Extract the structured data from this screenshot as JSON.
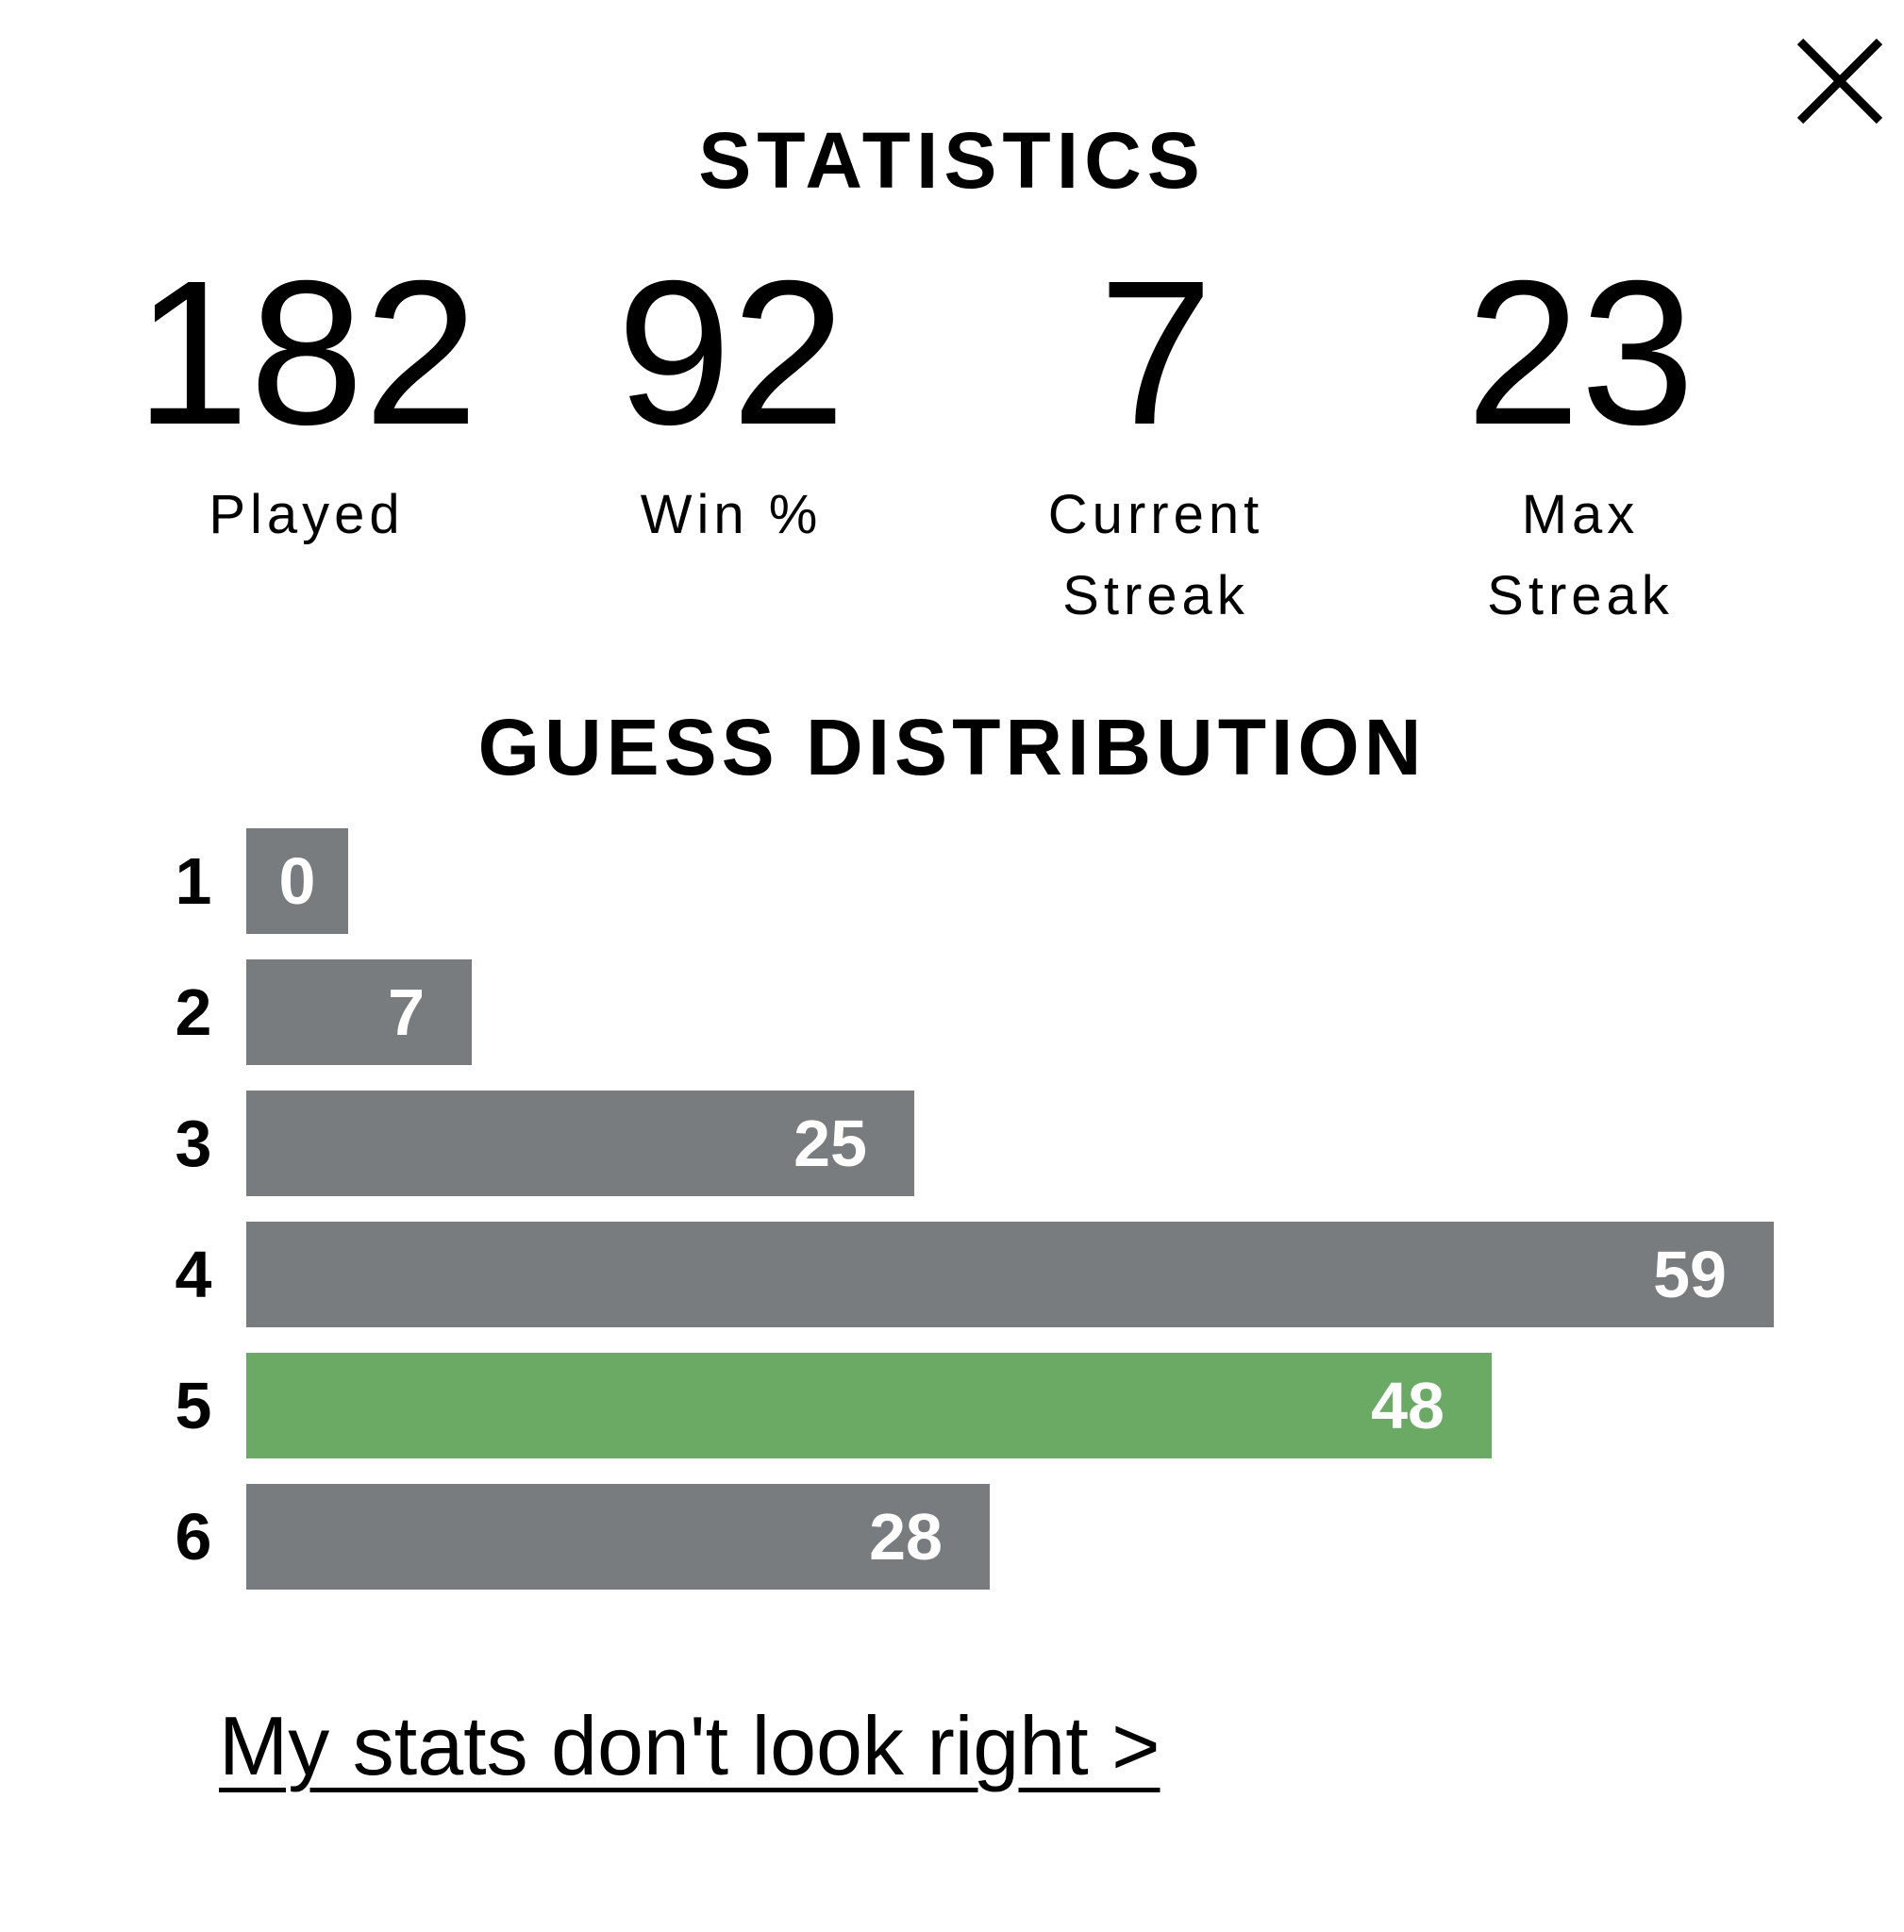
{
  "modal": {
    "title": "STATISTICS",
    "close_icon": "close-icon"
  },
  "stats": [
    {
      "value": "182",
      "label_line1": "Played",
      "label_line2": ""
    },
    {
      "value": "92",
      "label_line1": "Win %",
      "label_line2": ""
    },
    {
      "value": "7",
      "label_line1": "Current",
      "label_line2": "Streak"
    },
    {
      "value": "23",
      "label_line1": "Max",
      "label_line2": "Streak"
    }
  ],
  "distribution": {
    "title": "GUESS DISTRIBUTION",
    "highlight_color": "#6aaa64",
    "default_color": "#787c7e",
    "rows": [
      {
        "guess": "1",
        "count": "0",
        "highlight": false
      },
      {
        "guess": "2",
        "count": "7",
        "highlight": false
      },
      {
        "guess": "3",
        "count": "25",
        "highlight": false
      },
      {
        "guess": "4",
        "count": "59",
        "highlight": false
      },
      {
        "guess": "5",
        "count": "48",
        "highlight": true
      },
      {
        "guess": "6",
        "count": "28",
        "highlight": false
      }
    ]
  },
  "footer": {
    "link_label": "My stats don't look right >"
  }
}
